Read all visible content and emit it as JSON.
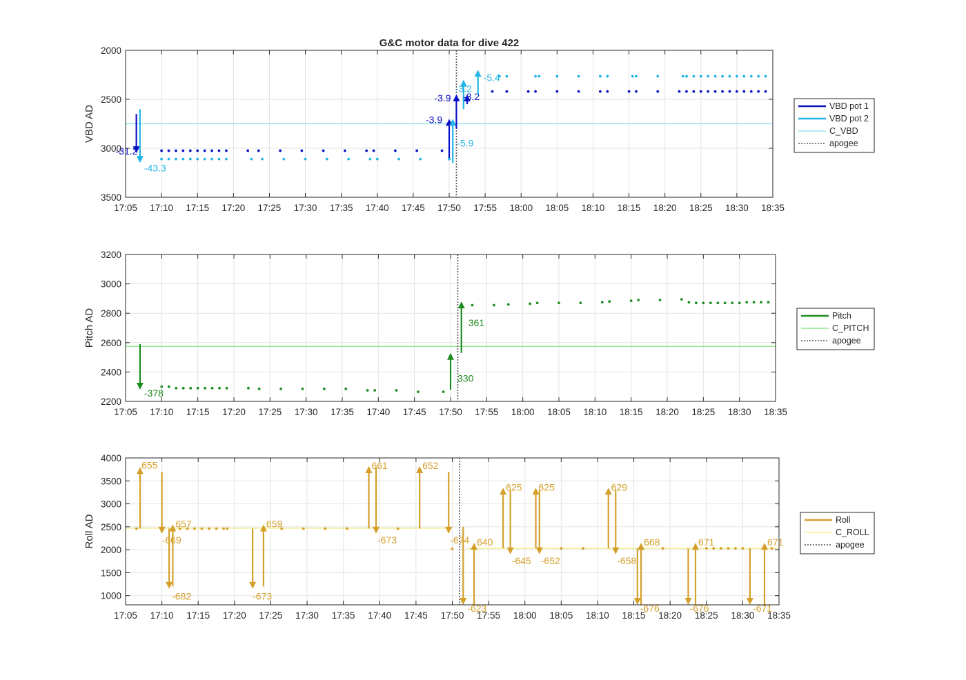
{
  "figure_title": "G&C motor data for dive 422",
  "chart_data": [
    {
      "type": "scatter",
      "title": "G&C motor data for dive 422",
      "xlabel": "",
      "ylabel": "VBD AD",
      "y_reversed": true,
      "xlim": [
        "17:05",
        "18:35"
      ],
      "ylim": [
        2000,
        3500
      ],
      "xticks": [
        "17:05",
        "17:10",
        "17:15",
        "17:20",
        "17:25",
        "17:30",
        "17:35",
        "17:40",
        "17:45",
        "17:50",
        "17:55",
        "18:00",
        "18:05",
        "18:10",
        "18:15",
        "18:20",
        "18:25",
        "18:30",
        "18:35"
      ],
      "yticks": [
        "2000",
        "2500",
        "3000",
        "3500"
      ],
      "grid": true,
      "legend_position": "right",
      "legend": [
        {
          "label": "VBD pot 1",
          "color": "#0a10c4",
          "style": "solid-thick"
        },
        {
          "label": "VBD pot 2",
          "color": "#22b4e6",
          "style": "solid-thick"
        },
        {
          "label": "C_VBD",
          "color": "#7fe0ea",
          "style": "solid-thin"
        },
        {
          "label": "apogee",
          "color": "#555555",
          "style": "dotted"
        }
      ],
      "apogee_x": "17:51",
      "hlines": [
        {
          "y": 2750,
          "color": "#7fe0ea"
        }
      ],
      "series": [
        {
          "name": "VBD pot 1",
          "color": "#0a10c4",
          "x": [
            "17:10",
            "17:11",
            "17:12",
            "17:13",
            "17:14",
            "17:15",
            "17:16",
            "17:17",
            "17:18",
            "17:19",
            "17:22",
            "17:23.5",
            "17:26.5",
            "17:29.5",
            "17:32.5",
            "17:35.5",
            "17:38.5",
            "17:39.5",
            "17:42.5",
            "17:45.5",
            "17:49",
            "17:56",
            "17:58",
            "18:01",
            "18:02",
            "18:05",
            "18:08",
            "18:11",
            "18:12",
            "18:15",
            "18:16",
            "18:19",
            "18:22",
            "18:23",
            "18:24",
            "18:25",
            "18:26",
            "18:27",
            "18:28",
            "18:29",
            "18:30",
            "18:31",
            "18:32",
            "18:33",
            "18:34"
          ],
          "y": [
            3025,
            3025,
            3025,
            3025,
            3025,
            3025,
            3025,
            3025,
            3025,
            3025,
            3025,
            3025,
            3025,
            3025,
            3025,
            3025,
            3025,
            3025,
            3025,
            3025,
            3025,
            2420,
            2420,
            2420,
            2420,
            2420,
            2420,
            2420,
            2420,
            2420,
            2420,
            2420,
            2420,
            2420,
            2420,
            2420,
            2420,
            2420,
            2420,
            2420,
            2420,
            2420,
            2420,
            2420,
            2420
          ]
        },
        {
          "name": "VBD pot 2",
          "color": "#22b4e6",
          "x": [
            "17:10",
            "17:11",
            "17:12",
            "17:13",
            "17:14",
            "17:15",
            "17:16",
            "17:17",
            "17:18",
            "17:19",
            "17:22.5",
            "17:24",
            "17:27",
            "17:30",
            "17:33",
            "17:36",
            "17:39",
            "17:40",
            "17:43",
            "17:46",
            "17:50",
            "17:57",
            "17:58",
            "18:02",
            "18:02.5",
            "18:05",
            "18:08",
            "18:11",
            "18:12",
            "18:15.5",
            "18:16",
            "18:19",
            "18:22.5",
            "18:23",
            "18:24",
            "18:25",
            "18:26",
            "18:27",
            "18:28",
            "18:29",
            "18:30",
            "18:31",
            "18:32",
            "18:33",
            "18:34"
          ],
          "y": [
            3110,
            3110,
            3110,
            3110,
            3110,
            3110,
            3110,
            3110,
            3110,
            3110,
            3110,
            3110,
            3110,
            3110,
            3110,
            3110,
            3110,
            3110,
            3110,
            3110,
            3110,
            2265,
            2265,
            2265,
            2265,
            2265,
            2265,
            2265,
            2265,
            2265,
            2265,
            2265,
            2265,
            2265,
            2265,
            2265,
            2265,
            2265,
            2265,
            2265,
            2265,
            2265,
            2265,
            2265,
            2265
          ]
        }
      ],
      "moves": [
        {
          "x": "17:06.5",
          "from": 2650,
          "to": 3050,
          "color": "#0a10c4",
          "label": "-31.2",
          "lx": -30,
          "ly": 6
        },
        {
          "x": "17:07",
          "from": 2600,
          "to": 3150,
          "color": "#22b4e6",
          "label": "-43.3",
          "lx": 6,
          "ly": 16
        },
        {
          "x": "17:50",
          "from": 3100,
          "to": 2700,
          "color": "#0a10c4",
          "label": "-3.9",
          "lx": -34,
          "ly": 6
        },
        {
          "x": "17:50.5",
          "from": 3150,
          "to": 2700,
          "color": "#22b4e6",
          "label": "-5.9",
          "lx": 6,
          "ly": 40
        },
        {
          "x": "17:51",
          "from": 2800,
          "to": 2450,
          "color": "#0a10c4",
          "label": "-3.9",
          "lx": -32,
          "ly": 10
        },
        {
          "x": "17:52",
          "from": 2600,
          "to": 2300,
          "color": "#22b4e6",
          "label": "-3.2",
          "lx": -12,
          "ly": 18
        },
        {
          "x": "17:52.5",
          "from": 2550,
          "to": 2450,
          "color": "#0a10c4",
          "label": "-3.2",
          "lx": -6,
          "ly": 8
        },
        {
          "x": "17:54",
          "from": 2450,
          "to": 2200,
          "color": "#22b4e6",
          "label": "-5.4",
          "lx": 8,
          "ly": 16
        }
      ]
    },
    {
      "type": "scatter",
      "title": "",
      "xlabel": "",
      "ylabel": "Pitch AD",
      "y_reversed": false,
      "xlim": [
        "17:05",
        "18:35"
      ],
      "ylim": [
        2200,
        3200
      ],
      "xticks": [
        "17:05",
        "17:10",
        "17:15",
        "17:20",
        "17:25",
        "17:30",
        "17:35",
        "17:40",
        "17:45",
        "17:50",
        "17:55",
        "18:00",
        "18:05",
        "18:10",
        "18:15",
        "18:20",
        "18:25",
        "18:30",
        "18:35"
      ],
      "yticks": [
        "2200",
        "2400",
        "2600",
        "2800",
        "3000",
        "3200"
      ],
      "grid": true,
      "legend_position": "right",
      "legend": [
        {
          "label": "Pitch",
          "color": "#1e8c22",
          "style": "solid-thick"
        },
        {
          "label": "C_PITCH",
          "color": "#7ee07e",
          "style": "solid-thin"
        },
        {
          "label": "apogee",
          "color": "#555555",
          "style": "dotted"
        }
      ],
      "apogee_x": "17:51",
      "hlines": [
        {
          "y": 2575,
          "color": "#7ee07e"
        }
      ],
      "series": [
        {
          "name": "Pitch",
          "color": "#1e8c22",
          "x": [
            "17:10",
            "17:11",
            "17:12",
            "17:13",
            "17:14",
            "17:15",
            "17:16",
            "17:17",
            "17:18",
            "17:19",
            "17:22",
            "17:23.5",
            "17:26.5",
            "17:29.5",
            "17:32.5",
            "17:35.5",
            "17:38.5",
            "17:39.5",
            "17:42.5",
            "17:45.5",
            "17:49",
            "17:53",
            "17:56",
            "17:58",
            "18:01",
            "18:02",
            "18:05",
            "18:08",
            "18:11",
            "18:12",
            "18:15",
            "18:16",
            "18:19",
            "18:22",
            "18:23",
            "18:24",
            "18:25",
            "18:26",
            "18:27",
            "18:28",
            "18:29",
            "18:30",
            "18:31",
            "18:32",
            "18:33",
            "18:34"
          ],
          "y": [
            2300,
            2300,
            2290,
            2290,
            2290,
            2290,
            2290,
            2290,
            2290,
            2290,
            2290,
            2285,
            2285,
            2285,
            2285,
            2285,
            2275,
            2275,
            2275,
            2265,
            2265,
            2855,
            2855,
            2860,
            2865,
            2870,
            2870,
            2870,
            2875,
            2880,
            2885,
            2890,
            2890,
            2895,
            2875,
            2870,
            2870,
            2870,
            2870,
            2870,
            2870,
            2870,
            2875,
            2875,
            2875,
            2875
          ]
        }
      ],
      "moves": [
        {
          "x": "17:07",
          "from": 2590,
          "to": 2280,
          "color": "#1e8c22",
          "label": "-378",
          "lx": 6,
          "ly": 14
        },
        {
          "x": "17:50",
          "from": 2280,
          "to": 2530,
          "color": "#1e8c22",
          "label": "330",
          "lx": 10,
          "ly": 42
        },
        {
          "x": "17:51.5",
          "from": 2530,
          "to": 2880,
          "color": "#1e8c22",
          "label": "361",
          "lx": 10,
          "ly": 36
        }
      ]
    },
    {
      "type": "scatter",
      "title": "",
      "xlabel": "",
      "ylabel": "Roll AD",
      "y_reversed": false,
      "xlim": [
        "17:05",
        "18:35"
      ],
      "ylim": [
        800,
        4000
      ],
      "xticks": [
        "17:05",
        "17:10",
        "17:15",
        "17:20",
        "17:25",
        "17:30",
        "17:35",
        "17:40",
        "17:45",
        "17:50",
        "17:55",
        "18:00",
        "18:05",
        "18:10",
        "18:15",
        "18:20",
        "18:25",
        "18:30",
        "18:35"
      ],
      "yticks": [
        "1000",
        "1500",
        "2000",
        "2500",
        "3000",
        "3500",
        "4000"
      ],
      "grid": true,
      "legend_position": "right",
      "legend": [
        {
          "label": "Roll",
          "color": "#d4a02a",
          "style": "solid-thick"
        },
        {
          "label": "C_ROLL",
          "color": "#f2ea7a",
          "style": "solid-thin"
        },
        {
          "label": "apogee",
          "color": "#555555",
          "style": "dotted"
        }
      ],
      "apogee_x": "17:51",
      "hlines": [
        {
          "y": 2470,
          "color": "#f2ea7a",
          "x0": "17:05",
          "x1": "17:50"
        },
        {
          "y": 2030,
          "color": "#f2ea7a",
          "x0": "17:52",
          "x1": "18:35"
        }
      ],
      "series": [
        {
          "name": "Roll",
          "color": "#d4a02a",
          "x": [
            "17:06.5",
            "17:12.5",
            "17:13.5",
            "17:14.5",
            "17:15.5",
            "17:16.5",
            "17:17.5",
            "17:18.5",
            "17:19",
            "17:26.5",
            "17:29.5",
            "17:32.5",
            "17:35.5",
            "17:42.5",
            "17:50",
            "18:05",
            "18:08",
            "18:19",
            "18:25",
            "18:26",
            "18:27",
            "18:28",
            "18:29",
            "18:30",
            "18:34"
          ],
          "y": [
            2460,
            2460,
            2460,
            2460,
            2460,
            2460,
            2460,
            2460,
            2460,
            2460,
            2460,
            2460,
            2460,
            2460,
            2020,
            2030,
            2030,
            2030,
            2030,
            2030,
            2030,
            2030,
            2030,
            2030,
            2030
          ]
        }
      ],
      "moves": [
        {
          "x": "17:07",
          "from": 2460,
          "to": 3800,
          "color": "#d4a02a",
          "label": "655",
          "lx": 2,
          "ly": 2
        },
        {
          "x": "17:10",
          "from": 3700,
          "to": 2350,
          "color": "#d4a02a",
          "label": "-669",
          "lx": 0,
          "ly": 18
        },
        {
          "x": "17:11",
          "from": 2460,
          "to": 1150,
          "color": "#d4a02a",
          "label": "-682",
          "lx": 4,
          "ly": 20
        },
        {
          "x": "17:11.5",
          "from": 1200,
          "to": 2550,
          "color": "#d4a02a",
          "label": "657",
          "lx": 4,
          "ly": 4
        },
        {
          "x": "17:22.5",
          "from": 2460,
          "to": 1150,
          "color": "#d4a02a",
          "label": "-673",
          "lx": 0,
          "ly": 20
        },
        {
          "x": "17:24",
          "from": 1200,
          "to": 2550,
          "color": "#d4a02a",
          "label": "659",
          "lx": 4,
          "ly": 4
        },
        {
          "x": "17:38.5",
          "from": 2460,
          "to": 3820,
          "color": "#d4a02a",
          "label": "661",
          "lx": 4,
          "ly": 4
        },
        {
          "x": "17:39.5",
          "from": 3800,
          "to": 2350,
          "color": "#d4a02a",
          "label": "-673",
          "lx": 2,
          "ly": 18
        },
        {
          "x": "17:45.5",
          "from": 2460,
          "to": 3820,
          "color": "#d4a02a",
          "label": "652",
          "lx": 4,
          "ly": 4
        },
        {
          "x": "17:49.5",
          "from": 3700,
          "to": 2350,
          "color": "#d4a02a",
          "label": "-674",
          "lx": 2,
          "ly": 18
        },
        {
          "x": "17:51.5",
          "from": 2500,
          "to": 800,
          "color": "#d4a02a",
          "label": "-623",
          "lx": 6,
          "ly": 14
        },
        {
          "x": "17:53",
          "from": 800,
          "to": 2150,
          "color": "#d4a02a",
          "label": "640",
          "lx": 4,
          "ly": 4
        },
        {
          "x": "17:57",
          "from": 2030,
          "to": 3350,
          "color": "#d4a02a",
          "label": "625",
          "lx": 4,
          "ly": 4
        },
        {
          "x": "17:58",
          "from": 3300,
          "to": 1900,
          "color": "#d4a02a",
          "label": "-645",
          "lx": 2,
          "ly": 18
        },
        {
          "x": "18:01.5",
          "from": 2030,
          "to": 3350,
          "color": "#d4a02a",
          "label": "625",
          "lx": 4,
          "ly": 4
        },
        {
          "x": "18:02",
          "from": 3300,
          "to": 1900,
          "color": "#d4a02a",
          "label": "-652",
          "lx": 2,
          "ly": 18
        },
        {
          "x": "18:11.5",
          "from": 2030,
          "to": 3350,
          "color": "#d4a02a",
          "label": "629",
          "lx": 4,
          "ly": 4
        },
        {
          "x": "18:12.5",
          "from": 3300,
          "to": 1900,
          "color": "#d4a02a",
          "label": "-658",
          "lx": 2,
          "ly": 18
        },
        {
          "x": "18:15.5",
          "from": 2030,
          "to": 800,
          "color": "#d4a02a",
          "label": "-676",
          "lx": 4,
          "ly": 14
        },
        {
          "x": "18:16",
          "from": 800,
          "to": 2150,
          "color": "#d4a02a",
          "label": "668",
          "lx": 4,
          "ly": 4
        },
        {
          "x": "18:22.5",
          "from": 2030,
          "to": 800,
          "color": "#d4a02a",
          "label": "-676",
          "lx": 2,
          "ly": 14
        },
        {
          "x": "18:23.5",
          "from": 800,
          "to": 2150,
          "color": "#d4a02a",
          "label": "671",
          "lx": 4,
          "ly": 4
        },
        {
          "x": "18:31",
          "from": 2030,
          "to": 800,
          "color": "#d4a02a",
          "label": "-671",
          "lx": 4,
          "ly": 14
        },
        {
          "x": "18:33",
          "from": 800,
          "to": 2150,
          "color": "#d4a02a",
          "label": "671",
          "lx": 4,
          "ly": 4
        }
      ]
    }
  ]
}
